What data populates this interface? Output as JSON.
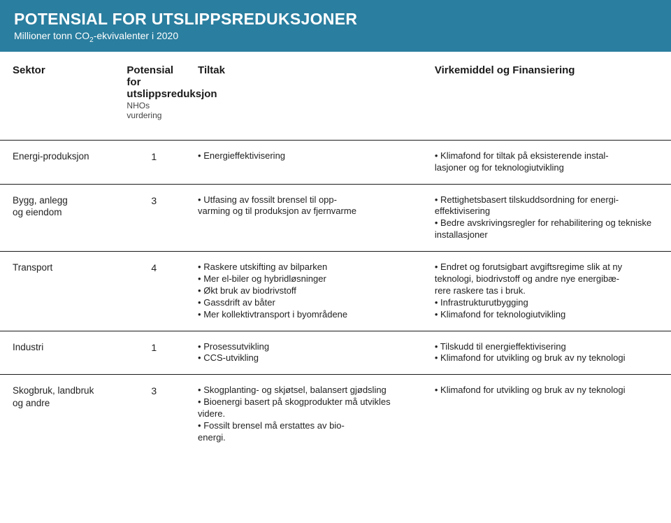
{
  "header": {
    "title": "POTENSIAL FOR UTSLIPPSREDUKSJONER",
    "subtitle_pre": "Millioner tonn CO",
    "subtitle_sub": "2",
    "subtitle_post": "-ekvivalenter i 2020"
  },
  "columns": {
    "sektor": "Sektor",
    "potensial": "Potensial for utslippsreduksjon",
    "potensial_sub": "NHOs vurdering",
    "tiltak": "Tiltak",
    "virkemiddel": "Virkemiddel og Finansiering"
  },
  "rows": [
    {
      "sektor": "Energi-produksjon",
      "potensial": "1",
      "tiltak": "• Energieffektivisering",
      "virkemiddel": "• Klimafond for tiltak på eksisterende instal-\nlasjoner og for teknologiutvikling"
    },
    {
      "sektor": "Bygg, anlegg\nog eiendom",
      "potensial": "3",
      "tiltak": "• Utfasing av fossilt brensel til opp-\nvarming og til produksjon av fjernvarme",
      "virkemiddel": "• Rettighetsbasert tilskuddsordning for energi-\neffektivisering\n• Bedre avskrivingsregler for rehabilitering og tekniske installasjoner"
    },
    {
      "sektor": "Transport",
      "potensial": "4",
      "tiltak": "• Raskere utskifting av bilparken\n• Mer el-biler og hybridløsninger\n• Økt bruk av biodrivstoff\n• Gassdrift av båter\n• Mer kollektivtransport i byområdene",
      "virkemiddel": "• Endret og forutsigbart avgiftsregime slik at ny teknologi, biodrivstoff og andre nye energibæ-\nrere raskere tas i bruk.\n• Infrastrukturutbygging\n• Klimafond for teknologiutvikling"
    },
    {
      "sektor": "Industri",
      "potensial": "1",
      "tiltak": "• Prosessutvikling\n• CCS-utvikling",
      "virkemiddel": "• Tilskudd til energieffektivisering\n• Klimafond for utvikling og bruk av ny teknologi"
    },
    {
      "sektor": "Skogbruk, landbruk\n og andre",
      "potensial": "3",
      "tiltak": "• Skogplanting- og skjøtsel, balansert gjødsling\n• Bioenergi basert på skogprodukter må utvikles videre.\n• Fossilt brensel må erstattes av bio-\nenergi.",
      "virkemiddel": "• Klimafond for utvikling og bruk av ny teknologi"
    }
  ],
  "colors": {
    "header_bg": "#2a7e9f",
    "header_text": "#ffffff",
    "body_text": "#222222",
    "rule": "#1a1a1a"
  }
}
